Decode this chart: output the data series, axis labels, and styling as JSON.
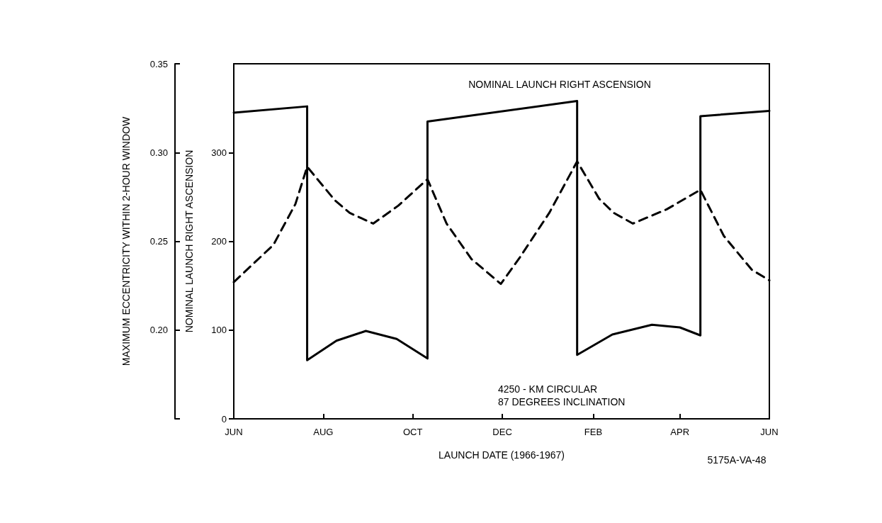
{
  "chart_data": {
    "type": "line",
    "xlabel": "LAUNCH DATE (1966-1967)",
    "ylabel": "NOMINAL LAUNCH RIGHT ASCENSION",
    "y2label": "MAXIMUM ECCENTRICITY WITHIN 2-HOUR WINDOW",
    "xlim": [
      "1966-06-01",
      "1967-06-01"
    ],
    "xticks": [
      {
        "value": "1966-06-01",
        "label": "JUN"
      },
      {
        "value": "1966-08-01",
        "label": "AUG"
      },
      {
        "value": "1966-10-01",
        "label": "OCT"
      },
      {
        "value": "1966-12-01",
        "label": "DEC"
      },
      {
        "value": "1967-02-01",
        "label": "FEB"
      },
      {
        "value": "1967-04-01",
        "label": "APR"
      },
      {
        "value": "1967-06-01",
        "label": "JUN"
      }
    ],
    "ylim": [
      0,
      400
    ],
    "yticks": [
      0,
      100,
      200,
      300
    ],
    "y2lim": [
      0.15,
      0.35
    ],
    "y2ticks": [
      {
        "value": 0.15,
        "label": null
      },
      {
        "value": 0.2,
        "label": "0.20"
      },
      {
        "value": 0.25,
        "label": "0.25"
      },
      {
        "value": 0.3,
        "label": "0.30"
      },
      {
        "value": 0.35,
        "label": "0.35"
      }
    ],
    "marker": "none",
    "series": [
      {
        "color": "#000000",
        "line_style": "solid",
        "x": [
          "1966-06-01",
          "1966-07-21",
          "1966-07-21",
          "1966-08-10",
          "1966-08-30",
          "1966-09-20",
          "1966-10-11",
          "1966-10-11",
          "1967-01-21",
          "1967-01-21",
          "1967-02-14",
          "1967-03-13",
          "1967-04-01",
          "1967-04-15",
          "1967-04-15",
          "1967-06-01"
        ],
        "values": [
          345,
          352,
          66,
          88,
          99,
          90,
          68,
          335,
          358,
          72,
          95,
          106,
          103,
          94,
          341,
          347
        ]
      },
      {
        "color": "#000000",
        "line_style": "dashed",
        "axis": "y2",
        "x": [
          "1966-06-01",
          "1966-06-28",
          "1966-07-13",
          "1966-07-21",
          "1966-08-09",
          "1966-08-19",
          "1966-09-04",
          "1966-09-21",
          "1966-10-11",
          "1966-10-24",
          "1966-11-10",
          "1966-11-30",
          "1966-12-13",
          "1967-01-02",
          "1967-01-21",
          "1967-02-05",
          "1967-02-15",
          "1967-02-28",
          "1967-03-23",
          "1967-04-15",
          "1967-05-01",
          "1967-05-20",
          "1967-06-01"
        ],
        "values": [
          0.227,
          0.248,
          0.271,
          0.292,
          0.273,
          0.266,
          0.26,
          0.27,
          0.285,
          0.26,
          0.24,
          0.226,
          0.241,
          0.266,
          0.295,
          0.274,
          0.266,
          0.26,
          0.268,
          0.279,
          0.253,
          0.234,
          0.228
        ]
      }
    ],
    "annotations": [
      "NOMINAL LAUNCH RIGHT ASCENSION",
      "4250 - KM CIRCULAR\n87 DEGREES INCLINATION",
      "5175A-VA-48"
    ]
  }
}
